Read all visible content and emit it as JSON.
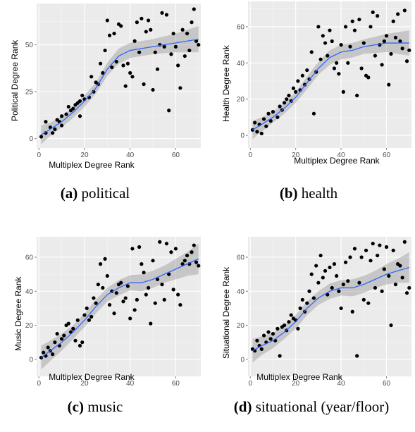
{
  "captions": [
    {
      "label": "(a)",
      "text": "political"
    },
    {
      "label": "(b)",
      "text": "health"
    },
    {
      "label": "(c)",
      "text": "music"
    },
    {
      "label": "(d)",
      "text": "situational (year/floor)"
    }
  ],
  "chart_data": [
    {
      "type": "scatter",
      "title": "",
      "xlabel": "Multiplex Degree Rank",
      "ylabel": "Political Degree Rank",
      "xlim": [
        -1,
        71
      ],
      "ylim": [
        -5,
        72
      ],
      "xticks": [
        0,
        20,
        40,
        60
      ],
      "yticks": [
        0,
        25,
        50
      ],
      "ytick_labels": [
        "0",
        "25",
        "50"
      ],
      "grid": true,
      "colors": {
        "points": "#000000",
        "smooth": "#3366ff",
        "band": "#999999",
        "panel": "#ebebeb",
        "grid": "#ffffff"
      },
      "points": [
        [
          1,
          1
        ],
        [
          3,
          3
        ],
        [
          3,
          9
        ],
        [
          5,
          6
        ],
        [
          6,
          3
        ],
        [
          7,
          5
        ],
        [
          8,
          10
        ],
        [
          9,
          9
        ],
        [
          10,
          12
        ],
        [
          10,
          7
        ],
        [
          12,
          13
        ],
        [
          13,
          17
        ],
        [
          14,
          15
        ],
        [
          15,
          16
        ],
        [
          16,
          18
        ],
        [
          17,
          19
        ],
        [
          18,
          20
        ],
        [
          18,
          12
        ],
        [
          19,
          23
        ],
        [
          20,
          21
        ],
        [
          22,
          22
        ],
        [
          23,
          33
        ],
        [
          24,
          25
        ],
        [
          25,
          30
        ],
        [
          26,
          29
        ],
        [
          27,
          40
        ],
        [
          28,
          35
        ],
        [
          29,
          47
        ],
        [
          30,
          63
        ],
        [
          31,
          55
        ],
        [
          32,
          38
        ],
        [
          33,
          56
        ],
        [
          34,
          41
        ],
        [
          35,
          61
        ],
        [
          36,
          60
        ],
        [
          37,
          39
        ],
        [
          38,
          28
        ],
        [
          39,
          40
        ],
        [
          40,
          35
        ],
        [
          41,
          33
        ],
        [
          42,
          52
        ],
        [
          43,
          62
        ],
        [
          44,
          46
        ],
        [
          45,
          64
        ],
        [
          46,
          29
        ],
        [
          47,
          57
        ],
        [
          48,
          63
        ],
        [
          49,
          58
        ],
        [
          50,
          26
        ],
        [
          51,
          46
        ],
        [
          52,
          37
        ],
        [
          53,
          50
        ],
        [
          54,
          67
        ],
        [
          55,
          49
        ],
        [
          56,
          66
        ],
        [
          57,
          15
        ],
        [
          58,
          45
        ],
        [
          59,
          56
        ],
        [
          60,
          49
        ],
        [
          61,
          39
        ],
        [
          62,
          27
        ],
        [
          63,
          58
        ],
        [
          64,
          44
        ],
        [
          65,
          56
        ],
        [
          66,
          47
        ],
        [
          67,
          62
        ],
        [
          68,
          69
        ],
        [
          69,
          52
        ],
        [
          70,
          50
        ]
      ],
      "smooth_x": [
        1,
        5,
        10,
        15,
        20,
        25,
        30,
        35,
        40,
        45,
        50,
        55,
        60,
        65,
        70
      ],
      "smooth_y": [
        2,
        5,
        9,
        14,
        20,
        27,
        37,
        44,
        47,
        48,
        49,
        50,
        51,
        52,
        53
      ],
      "band_half_width": [
        5,
        3.5,
        3,
        3,
        3,
        3,
        3.5,
        4,
        4,
        4,
        4,
        4.5,
        5,
        6,
        7
      ]
    },
    {
      "type": "scatter",
      "title": "",
      "xlabel": "Multiplex Degree Rank",
      "ylabel": "Health Degree Rank",
      "xlim": [
        -1,
        71
      ],
      "ylim": [
        -7,
        74
      ],
      "xticks": [
        0,
        20,
        40,
        60
      ],
      "yticks": [
        0,
        20,
        40,
        60
      ],
      "ytick_labels": [
        "0",
        "20",
        "40",
        "60"
      ],
      "grid": true,
      "colors": {
        "points": "#000000",
        "smooth": "#3366ff",
        "band": "#999999",
        "panel": "#ebebeb",
        "grid": "#ffffff"
      },
      "points": [
        [
          1,
          3
        ],
        [
          2,
          7
        ],
        [
          3,
          2
        ],
        [
          4,
          6
        ],
        [
          5,
          1
        ],
        [
          6,
          9
        ],
        [
          7,
          5
        ],
        [
          8,
          12
        ],
        [
          9,
          8
        ],
        [
          10,
          13
        ],
        [
          12,
          10
        ],
        [
          13,
          16
        ],
        [
          14,
          14
        ],
        [
          15,
          18
        ],
        [
          16,
          20
        ],
        [
          17,
          22
        ],
        [
          18,
          19
        ],
        [
          19,
          26
        ],
        [
          20,
          24
        ],
        [
          21,
          30
        ],
        [
          22,
          25
        ],
        [
          23,
          33
        ],
        [
          24,
          28
        ],
        [
          25,
          36
        ],
        [
          26,
          31
        ],
        [
          27,
          46
        ],
        [
          28,
          12
        ],
        [
          29,
          35
        ],
        [
          30,
          60
        ],
        [
          31,
          42
        ],
        [
          32,
          55
        ],
        [
          33,
          51
        ],
        [
          34,
          44
        ],
        [
          35,
          58
        ],
        [
          36,
          52
        ],
        [
          37,
          37
        ],
        [
          38,
          40
        ],
        [
          39,
          34
        ],
        [
          40,
          50
        ],
        [
          41,
          24
        ],
        [
          42,
          60
        ],
        [
          43,
          40
        ],
        [
          44,
          49
        ],
        [
          45,
          63
        ],
        [
          46,
          58
        ],
        [
          47,
          22
        ],
        [
          48,
          64
        ],
        [
          49,
          37
        ],
        [
          50,
          51
        ],
        [
          51,
          33
        ],
        [
          52,
          32
        ],
        [
          53,
          60
        ],
        [
          54,
          68
        ],
        [
          55,
          44
        ],
        [
          56,
          66
        ],
        [
          57,
          50
        ],
        [
          58,
          39
        ],
        [
          59,
          52
        ],
        [
          60,
          55
        ],
        [
          61,
          28
        ],
        [
          62,
          45
        ],
        [
          63,
          63
        ],
        [
          64,
          54
        ],
        [
          65,
          67
        ],
        [
          66,
          52
        ],
        [
          67,
          48
        ],
        [
          68,
          69
        ],
        [
          69,
          41
        ],
        [
          70,
          47
        ]
      ],
      "smooth_x": [
        1,
        5,
        10,
        15,
        20,
        25,
        30,
        35,
        40,
        45,
        50,
        55,
        60,
        65,
        70
      ],
      "smooth_y": [
        3,
        6,
        10,
        15,
        21,
        29,
        37,
        43,
        46,
        47,
        49,
        50,
        51,
        51,
        51
      ],
      "band_half_width": [
        5,
        4,
        3,
        3,
        3,
        3.5,
        3.5,
        4,
        4,
        4,
        4,
        4.5,
        5,
        6,
        7
      ]
    },
    {
      "type": "scatter",
      "title": "",
      "xlabel": "Multiplex Degree Rank",
      "ylabel": "Music Degree Rank",
      "xlim": [
        -1,
        71
      ],
      "ylim": [
        -10,
        72
      ],
      "xticks": [
        0,
        20,
        40,
        60
      ],
      "yticks": [
        0,
        20,
        40,
        60
      ],
      "ytick_labels": [
        "0",
        "20",
        "40",
        "60"
      ],
      "grid": true,
      "colors": {
        "points": "#000000",
        "smooth": "#3366ff",
        "band": "#999999",
        "panel": "#ebebeb",
        "grid": "#ffffff"
      },
      "points": [
        [
          1,
          1
        ],
        [
          2,
          4
        ],
        [
          3,
          2
        ],
        [
          4,
          7
        ],
        [
          5,
          5
        ],
        [
          6,
          3
        ],
        [
          7,
          10
        ],
        [
          8,
          15
        ],
        [
          9,
          8
        ],
        [
          10,
          12
        ],
        [
          11,
          14
        ],
        [
          12,
          20
        ],
        [
          13,
          21
        ],
        [
          14,
          16
        ],
        [
          15,
          18
        ],
        [
          16,
          11
        ],
        [
          17,
          23
        ],
        [
          18,
          8
        ],
        [
          19,
          10
        ],
        [
          20,
          26
        ],
        [
          21,
          30
        ],
        [
          22,
          23
        ],
        [
          23,
          25
        ],
        [
          24,
          36
        ],
        [
          25,
          33
        ],
        [
          26,
          44
        ],
        [
          27,
          56
        ],
        [
          28,
          42
        ],
        [
          29,
          59
        ],
        [
          30,
          49
        ],
        [
          31,
          32
        ],
        [
          32,
          40
        ],
        [
          33,
          27
        ],
        [
          34,
          39
        ],
        [
          35,
          44
        ],
        [
          36,
          45
        ],
        [
          37,
          34
        ],
        [
          38,
          36
        ],
        [
          39,
          43
        ],
        [
          40,
          24
        ],
        [
          41,
          65
        ],
        [
          42,
          29
        ],
        [
          43,
          35
        ],
        [
          44,
          66
        ],
        [
          45,
          56
        ],
        [
          46,
          51
        ],
        [
          47,
          38
        ],
        [
          48,
          42
        ],
        [
          49,
          21
        ],
        [
          50,
          58
        ],
        [
          51,
          33
        ],
        [
          52,
          47
        ],
        [
          53,
          69
        ],
        [
          54,
          44
        ],
        [
          55,
          35
        ],
        [
          56,
          68
        ],
        [
          57,
          50
        ],
        [
          58,
          63
        ],
        [
          59,
          41
        ],
        [
          60,
          65
        ],
        [
          61,
          38
        ],
        [
          62,
          32
        ],
        [
          63,
          56
        ],
        [
          64,
          58
        ],
        [
          65,
          61
        ],
        [
          66,
          56
        ],
        [
          67,
          63
        ],
        [
          68,
          67
        ],
        [
          69,
          57
        ],
        [
          70,
          55
        ]
      ],
      "smooth_x": [
        1,
        5,
        10,
        15,
        20,
        25,
        30,
        35,
        40,
        45,
        50,
        55,
        60,
        65,
        70
      ],
      "smooth_y": [
        1,
        5,
        10,
        16,
        23,
        31,
        38,
        42,
        45,
        45,
        47,
        50,
        53,
        56,
        59
      ],
      "band_half_width": [
        7,
        6,
        5,
        4,
        4,
        4,
        4,
        4.5,
        4.5,
        5,
        5,
        5,
        6,
        7,
        9
      ]
    },
    {
      "type": "scatter",
      "title": "",
      "xlabel": "Multiplex Degree Rank",
      "ylabel": "Situational Degree Rank",
      "xlim": [
        -1,
        71
      ],
      "ylim": [
        -10,
        72
      ],
      "xticks": [
        0,
        20,
        40,
        60
      ],
      "yticks": [
        0,
        20,
        40,
        60
      ],
      "ytick_labels": [
        "0",
        "20",
        "40",
        "60"
      ],
      "grid": true,
      "colors": {
        "points": "#000000",
        "smooth": "#3366ff",
        "band": "#999999",
        "panel": "#ebebeb",
        "grid": "#ffffff"
      },
      "points": [
        [
          1,
          6
        ],
        [
          2,
          5
        ],
        [
          3,
          11
        ],
        [
          4,
          8
        ],
        [
          5,
          6
        ],
        [
          6,
          14
        ],
        [
          7,
          10
        ],
        [
          8,
          16
        ],
        [
          9,
          12
        ],
        [
          10,
          15
        ],
        [
          11,
          11
        ],
        [
          12,
          18
        ],
        [
          13,
          2
        ],
        [
          14,
          19
        ],
        [
          15,
          20
        ],
        [
          16,
          17
        ],
        [
          17,
          22
        ],
        [
          18,
          26
        ],
        [
          19,
          24
        ],
        [
          20,
          23
        ],
        [
          21,
          18
        ],
        [
          22,
          30
        ],
        [
          23,
          35
        ],
        [
          24,
          28
        ],
        [
          25,
          33
        ],
        [
          26,
          40
        ],
        [
          27,
          50
        ],
        [
          28,
          36
        ],
        [
          29,
          55
        ],
        [
          30,
          45
        ],
        [
          31,
          61
        ],
        [
          32,
          48
        ],
        [
          33,
          52
        ],
        [
          34,
          38
        ],
        [
          35,
          54
        ],
        [
          36,
          42
        ],
        [
          37,
          56
        ],
        [
          38,
          49
        ],
        [
          39,
          40
        ],
        [
          40,
          30
        ],
        [
          41,
          44
        ],
        [
          42,
          57
        ],
        [
          43,
          46
        ],
        [
          44,
          60
        ],
        [
          45,
          28
        ],
        [
          46,
          65
        ],
        [
          47,
          2
        ],
        [
          48,
          45
        ],
        [
          49,
          60
        ],
        [
          50,
          35
        ],
        [
          51,
          64
        ],
        [
          52,
          33
        ],
        [
          53,
          58
        ],
        [
          54,
          68
        ],
        [
          55,
          42
        ],
        [
          56,
          61
        ],
        [
          57,
          67
        ],
        [
          58,
          40
        ],
        [
          59,
          53
        ],
        [
          60,
          66
        ],
        [
          61,
          49
        ],
        [
          62,
          20
        ],
        [
          63,
          64
        ],
        [
          64,
          44
        ],
        [
          65,
          56
        ],
        [
          66,
          55
        ],
        [
          67,
          48
        ],
        [
          68,
          69
        ],
        [
          69,
          39
        ],
        [
          70,
          42
        ]
      ],
      "smooth_x": [
        1,
        5,
        10,
        15,
        20,
        25,
        30,
        35,
        40,
        45,
        50,
        55,
        60,
        65,
        70
      ],
      "smooth_y": [
        5,
        8,
        11,
        16,
        22,
        30,
        36,
        40,
        42,
        42,
        44,
        47,
        50,
        52,
        54
      ],
      "band_half_width": [
        7,
        5.5,
        4.5,
        4,
        4,
        4,
        4,
        4.5,
        4.5,
        5,
        5,
        5,
        6,
        7,
        9
      ]
    }
  ]
}
